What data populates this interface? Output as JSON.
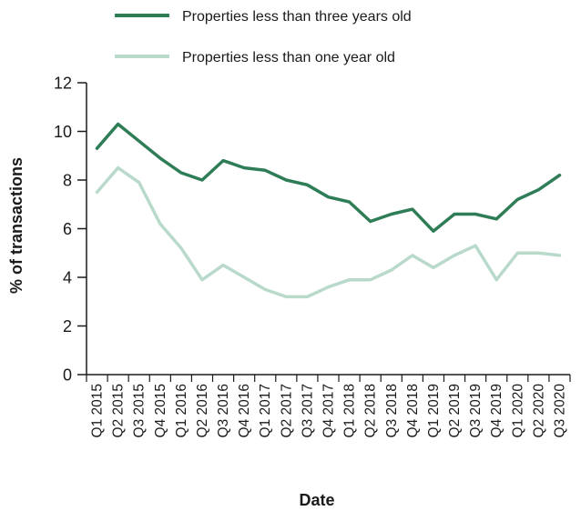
{
  "chart_data": {
    "type": "line",
    "title": "",
    "xlabel": "Date",
    "ylabel": "% of transactions",
    "ylim": [
      0,
      12
    ],
    "yticks": [
      0,
      2,
      4,
      6,
      8,
      10,
      12
    ],
    "grid": false,
    "legend_position": "top",
    "categories": [
      "Q1 2015",
      "Q2 2015",
      "Q3 2015",
      "Q4 2015",
      "Q1 2016",
      "Q2 2016",
      "Q3 2016",
      "Q4 2016",
      "Q1 2017",
      "Q2 2017",
      "Q3 2017",
      "Q4 2017",
      "Q1 2018",
      "Q2 2018",
      "Q3 2018",
      "Q4 2018",
      "Q1 2019",
      "Q2 2019",
      "Q3 2019",
      "Q4 2019",
      "Q1 2020",
      "Q2 2020",
      "Q3 2020"
    ],
    "series": [
      {
        "name": "Properties less than three years old",
        "color": "#2e7d57",
        "values": [
          9.3,
          10.3,
          9.6,
          8.9,
          8.3,
          8.0,
          8.8,
          8.5,
          8.4,
          8.0,
          7.8,
          7.3,
          7.1,
          6.3,
          6.6,
          6.8,
          5.9,
          6.6,
          6.6,
          6.4,
          7.2,
          7.6,
          8.2
        ]
      },
      {
        "name": "Properties less than one year old",
        "color": "#b9dacb",
        "values": [
          7.5,
          8.5,
          7.9,
          6.2,
          5.2,
          3.9,
          4.5,
          4.0,
          3.5,
          3.2,
          3.2,
          3.6,
          3.9,
          3.9,
          4.3,
          4.9,
          4.4,
          4.9,
          5.3,
          3.9,
          5.0,
          5.0,
          4.9
        ]
      }
    ]
  }
}
